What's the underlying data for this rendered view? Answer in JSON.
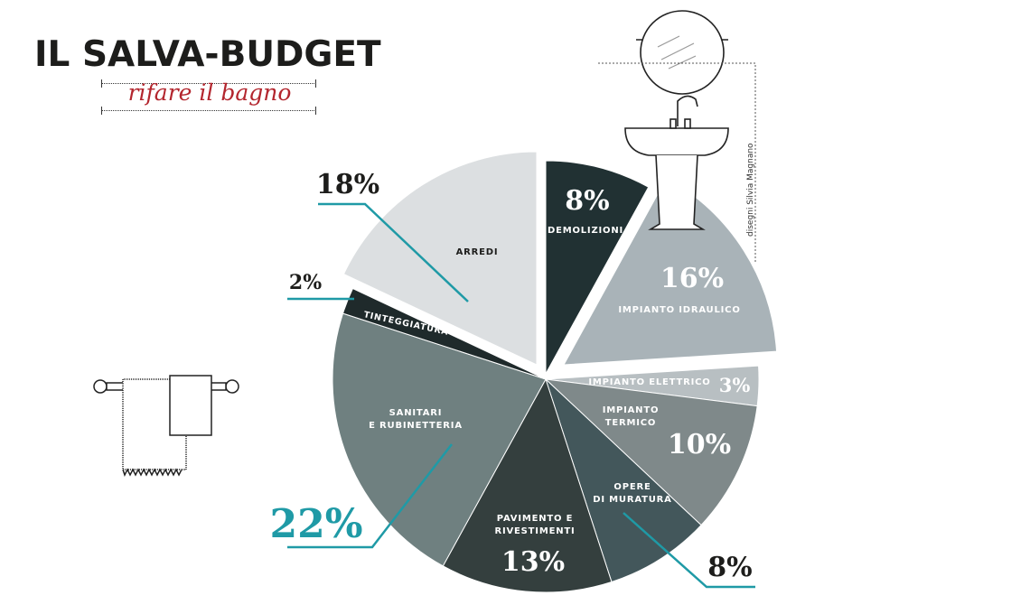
{
  "header": {
    "title": "IL SALVA-BUDGET",
    "subtitle": "rifare il bagno",
    "credit": "disegni Silvia Magnano"
  },
  "colors": {
    "accent": "#1f9aa6",
    "title": "#1d1d1b",
    "subtitle": "#b3262e"
  },
  "chart_data": {
    "type": "pie",
    "title": "IL SALVA-BUDGET",
    "subtitle": "rifare il bagno",
    "unit": "%",
    "slices": [
      {
        "label": "DEMOLIZIONI",
        "value": 8,
        "color": "#213133"
      },
      {
        "label": "IMPIANTO IDRAULICO",
        "value": 16,
        "color": "#a9b3b8"
      },
      {
        "label": "IMPIANTO ELETTRICO",
        "value": 3,
        "color": "#b8bfc2"
      },
      {
        "label": "IMPIANTO TERMICO",
        "value": 10,
        "color": "#7f898a"
      },
      {
        "label": "OPERE DI MURATURA",
        "value": 8,
        "color": "#43575b"
      },
      {
        "label": "PAVIMENTO E RIVESTIMENTI",
        "value": 13,
        "color": "#343f3e"
      },
      {
        "label": "SANITARI E RUBINETTERIA",
        "value": 22,
        "color": "#6f8080"
      },
      {
        "label": "TINTEGGIATURA",
        "value": 2,
        "color": "#1f2a2b"
      },
      {
        "label": "ARREDI",
        "value": 18,
        "color": "#dcdfe1"
      }
    ],
    "value_labels": [
      "8%",
      "16%",
      "3%",
      "10%",
      "8%",
      "13%",
      "22%",
      "2%",
      "18%"
    ]
  }
}
